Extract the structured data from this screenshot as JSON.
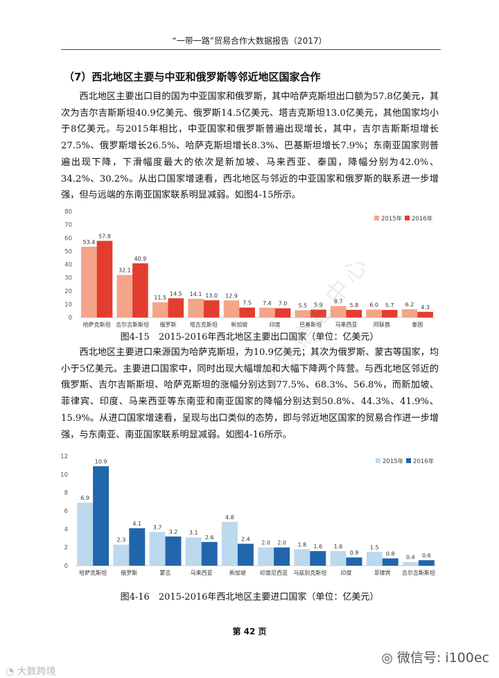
{
  "header": {
    "title": "“一带一路”贸易合作大数据报告（2017）"
  },
  "section": {
    "title": "（7）西北地区主要与中亚和俄罗斯等邻近地区国家合作"
  },
  "paragraphs": {
    "p1": "西北地区主要出口目的国为中亚国家和俄罗斯，其中哈萨克斯坦出口额为57.8亿美元，其次为吉尔吉斯斯坦40.9亿美元、俄罗斯14.5亿美元、塔吉克斯坦13.0亿美元，其他国家均小于8亿美元。与2015年相比，中亚国家和俄罗斯普遍出现增长，其中，吉尔吉斯斯坦增长27.5%、俄罗斯增长26.5%、哈萨克斯坦增长8.3%、巴基斯坦增长7.9%；东南亚国家则普遍出现下降，下滑幅度最大的依次是新加坡、马来西亚、泰国，降幅分别为42.0%、34.2%、30.2%。从出口国家增速看，西北地区与邻近的中亚国家和俄罗斯的联系进一步增强，但与远端的东南亚国家联系明显减弱。如图4-15所示。",
    "p2": "西北地区主要进口来源国为哈萨克斯坦，为10.9亿美元；其次为俄罗斯、蒙古等国家，均小于5亿美元。主要进口国家中，同时出现大幅增加和大幅下降两个阵营。与西北地区邻近的俄罗斯、吉尔吉斯斯坦、哈萨克斯坦的涨幅分别达到77.5%、68.3%、56.8%，而新加坡、菲律宾、印度、马来西亚等东南亚和南亚国家的降幅分别达到50.8%、44.3%、41.9%、15.9%。从进口国家增速看，呈现与出口类似的态势，即与邻近地区国家的贸易合作进一步增强，与东南亚、南亚国家联系明显减弱。如图4-16所示。"
  },
  "captions": {
    "fig1": "图4-15　2015-2016年西北地区主要出口国家（单位：亿美元）",
    "fig2": "图4-16　2015-2016年西北地区主要进口国家（单位：亿美元）"
  },
  "footer": {
    "page": "第 42 页"
  },
  "watermark": {
    "text": "贸易信息中心"
  },
  "overlay": {
    "left_logo": "大数跨境",
    "right_brand": "微信号: i100ec"
  },
  "chart_data": [
    {
      "type": "bar",
      "categories": [
        "哈萨克斯坦",
        "吉尔吉斯斯坦",
        "俄罗斯",
        "塔吉克斯坦",
        "新加坡",
        "印度",
        "巴基斯坦",
        "马来西亚",
        "阿联酋",
        "泰国"
      ],
      "series": [
        {
          "name": "2015年",
          "values": [
            53.4,
            32.1,
            11.5,
            14.1,
            12.9,
            7.4,
            5.5,
            8.7,
            6.0,
            6.2
          ],
          "color": "#f4a58a"
        },
        {
          "name": "2016年",
          "values": [
            57.8,
            40.9,
            14.5,
            13.0,
            7.5,
            7.0,
            5.9,
            5.8,
            5.7,
            4.3
          ],
          "color": "#e33d2f"
        }
      ],
      "yticks": [
        0,
        10,
        20,
        30,
        40,
        50,
        60,
        70,
        80
      ],
      "ylim": [
        0,
        80
      ],
      "legend": "top-right",
      "grid": false
    },
    {
      "type": "bar",
      "categories": [
        "哈萨克斯坦",
        "俄罗斯",
        "蒙古",
        "马来西亚",
        "新加坡",
        "印度尼西亚",
        "乌兹别克斯坦",
        "印度",
        "菲律宾",
        "吉尔吉斯斯坦"
      ],
      "series": [
        {
          "name": "2015年",
          "values": [
            6.9,
            2.3,
            3.7,
            3.1,
            4.8,
            2.0,
            1.8,
            1.6,
            1.5,
            0.4
          ],
          "color": "#bcd9ee"
        },
        {
          "name": "2016年",
          "values": [
            10.9,
            4.1,
            3.2,
            2.6,
            2.4,
            2.0,
            1.6,
            0.9,
            0.8,
            0.6
          ],
          "color": "#2166ac"
        }
      ],
      "yticks": [
        0,
        2,
        4,
        6,
        8,
        10,
        12
      ],
      "ylim": [
        0,
        12
      ],
      "legend": "top-right",
      "grid": false
    }
  ]
}
